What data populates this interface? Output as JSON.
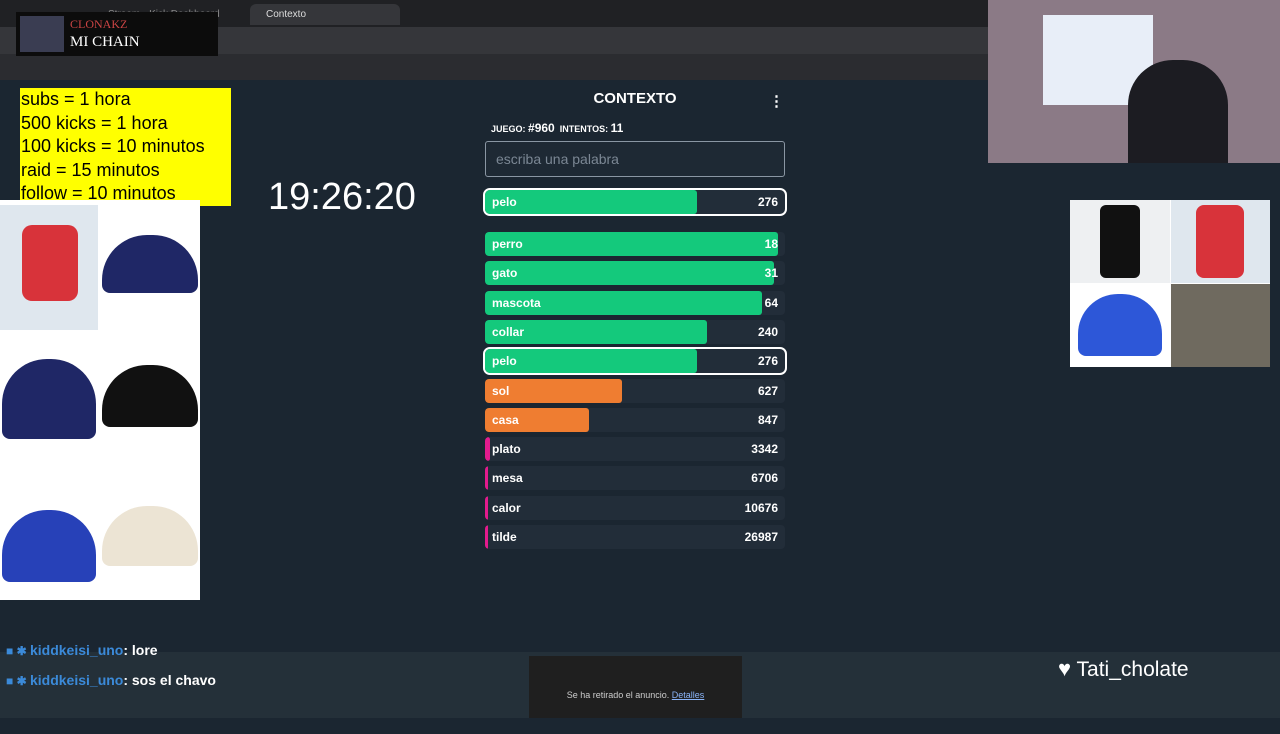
{
  "browser": {
    "tabs": [
      "Stream - Kick Dashboard",
      "Contexto"
    ]
  },
  "now_playing": {
    "artist": "CLONAKZ",
    "song": "MI CHAIN"
  },
  "goals": [
    "subs = 1 hora",
    "500 kicks = 1 hora",
    "100 kicks = 10 minutos",
    "raid = 15 minutos",
    "follow = 10 minutos"
  ],
  "timer": "19:26:20",
  "game": {
    "title": "CONTEXTO",
    "menu": "⋮",
    "game_label": "JUEGO:",
    "game_number": "#960",
    "tries_label": "INTENTOS:",
    "tries": 11,
    "placeholder": "escriba una palabra",
    "last": {
      "word": "pelo",
      "rank": 276
    },
    "guesses": [
      {
        "word": "perro",
        "rank": 18
      },
      {
        "word": "gato",
        "rank": 31
      },
      {
        "word": "mascota",
        "rank": 64
      },
      {
        "word": "collar",
        "rank": 240
      },
      {
        "word": "pelo",
        "rank": 276
      },
      {
        "word": "sol",
        "rank": 627
      },
      {
        "word": "casa",
        "rank": 847
      },
      {
        "word": "plato",
        "rank": 3342
      },
      {
        "word": "mesa",
        "rank": 6706
      },
      {
        "word": "calor",
        "rank": 10676
      },
      {
        "word": "tilde",
        "rank": 26987
      }
    ]
  },
  "chat": [
    {
      "user": "kiddkeisi_uno",
      "message": ": lore"
    },
    {
      "user": "kiddkeisi_uno",
      "message": ": sos el chavo"
    }
  ],
  "ad": {
    "text": "Se ha retirado el anuncio.",
    "link": "Detalles"
  },
  "streamer": "Tati_cholate"
}
